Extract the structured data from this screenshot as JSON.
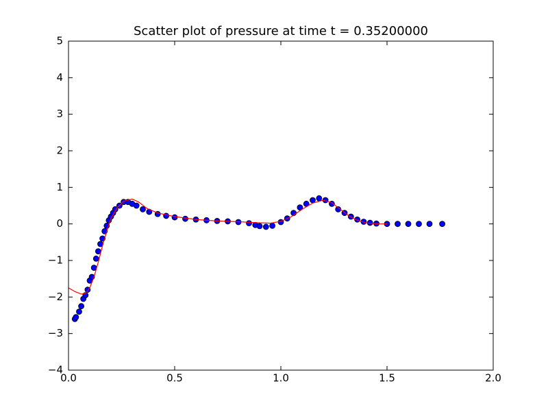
{
  "chart_data": {
    "type": "scatter",
    "title": "Scatter plot of pressure at time t =     0.35200000",
    "xlim": [
      0,
      2
    ],
    "ylim": [
      -4,
      5
    ],
    "xticks": [
      {
        "value": 0,
        "label": "0.0"
      },
      {
        "value": 0.5,
        "label": "0.5"
      },
      {
        "value": 1,
        "label": "1.0"
      },
      {
        "value": 1.5,
        "label": "1.5"
      },
      {
        "value": 2,
        "label": "2.0"
      }
    ],
    "yticks": [
      {
        "value": -4,
        "label": "−4"
      },
      {
        "value": -3,
        "label": "−3"
      },
      {
        "value": -2,
        "label": "−2"
      },
      {
        "value": -1,
        "label": "−1"
      },
      0,
      1,
      2,
      3,
      4,
      5
    ],
    "grid": false,
    "series": [
      {
        "type": "scatter",
        "color": "#0000ff",
        "x": [
          0.03,
          0.035,
          0.05,
          0.06,
          0.07,
          0.08,
          0.09,
          0.1,
          0.11,
          0.12,
          0.13,
          0.14,
          0.15,
          0.16,
          0.17,
          0.18,
          0.19,
          0.2,
          0.21,
          0.22,
          0.24,
          0.26,
          0.28,
          0.3,
          0.32,
          0.35,
          0.38,
          0.42,
          0.46,
          0.5,
          0.55,
          0.6,
          0.65,
          0.7,
          0.75,
          0.8,
          0.85,
          0.88,
          0.9,
          0.93,
          0.96,
          1.0,
          1.03,
          1.06,
          1.09,
          1.12,
          1.15,
          1.18,
          1.21,
          1.24,
          1.27,
          1.3,
          1.33,
          1.36,
          1.39,
          1.42,
          1.45,
          1.5,
          1.55,
          1.6,
          1.65,
          1.7,
          1.76
        ],
        "values": [
          -2.6,
          -2.55,
          -2.4,
          -2.25,
          -2.05,
          -1.95,
          -1.8,
          -1.55,
          -1.45,
          -1.2,
          -0.95,
          -0.75,
          -0.55,
          -0.4,
          -0.2,
          -0.05,
          0.1,
          0.2,
          0.3,
          0.4,
          0.5,
          0.6,
          0.6,
          0.55,
          0.5,
          0.4,
          0.33,
          0.27,
          0.22,
          0.18,
          0.14,
          0.12,
          0.1,
          0.08,
          0.07,
          0.05,
          0.02,
          -0.03,
          -0.06,
          -0.08,
          -0.05,
          0.05,
          0.15,
          0.3,
          0.45,
          0.55,
          0.65,
          0.7,
          0.65,
          0.55,
          0.4,
          0.3,
          0.2,
          0.12,
          0.06,
          0.03,
          0.01,
          0,
          0,
          0,
          0,
          0,
          0
        ]
      },
      {
        "type": "line",
        "color": "#ff0000",
        "x": [
          0,
          0.03,
          0.06,
          0.08,
          0.1,
          0.12,
          0.14,
          0.16,
          0.18,
          0.2,
          0.23,
          0.26,
          0.3,
          0.33,
          0.37,
          0.42,
          0.5,
          0.6,
          0.7,
          0.8,
          0.9,
          0.95,
          1.0,
          1.05,
          1.1,
          1.15,
          1.2,
          1.24,
          1.28,
          1.32,
          1.36,
          1.4,
          1.45,
          1.5
        ],
        "values": [
          -1.75,
          -1.85,
          -1.92,
          -1.9,
          -1.75,
          -1.45,
          -1.05,
          -0.6,
          -0.2,
          0.15,
          0.45,
          0.62,
          0.68,
          0.6,
          0.42,
          0.3,
          0.2,
          0.12,
          0.08,
          0.06,
          0.03,
          0.02,
          0.07,
          0.2,
          0.4,
          0.57,
          0.65,
          0.58,
          0.4,
          0.22,
          0.1,
          0.03,
          0,
          0
        ]
      }
    ]
  }
}
